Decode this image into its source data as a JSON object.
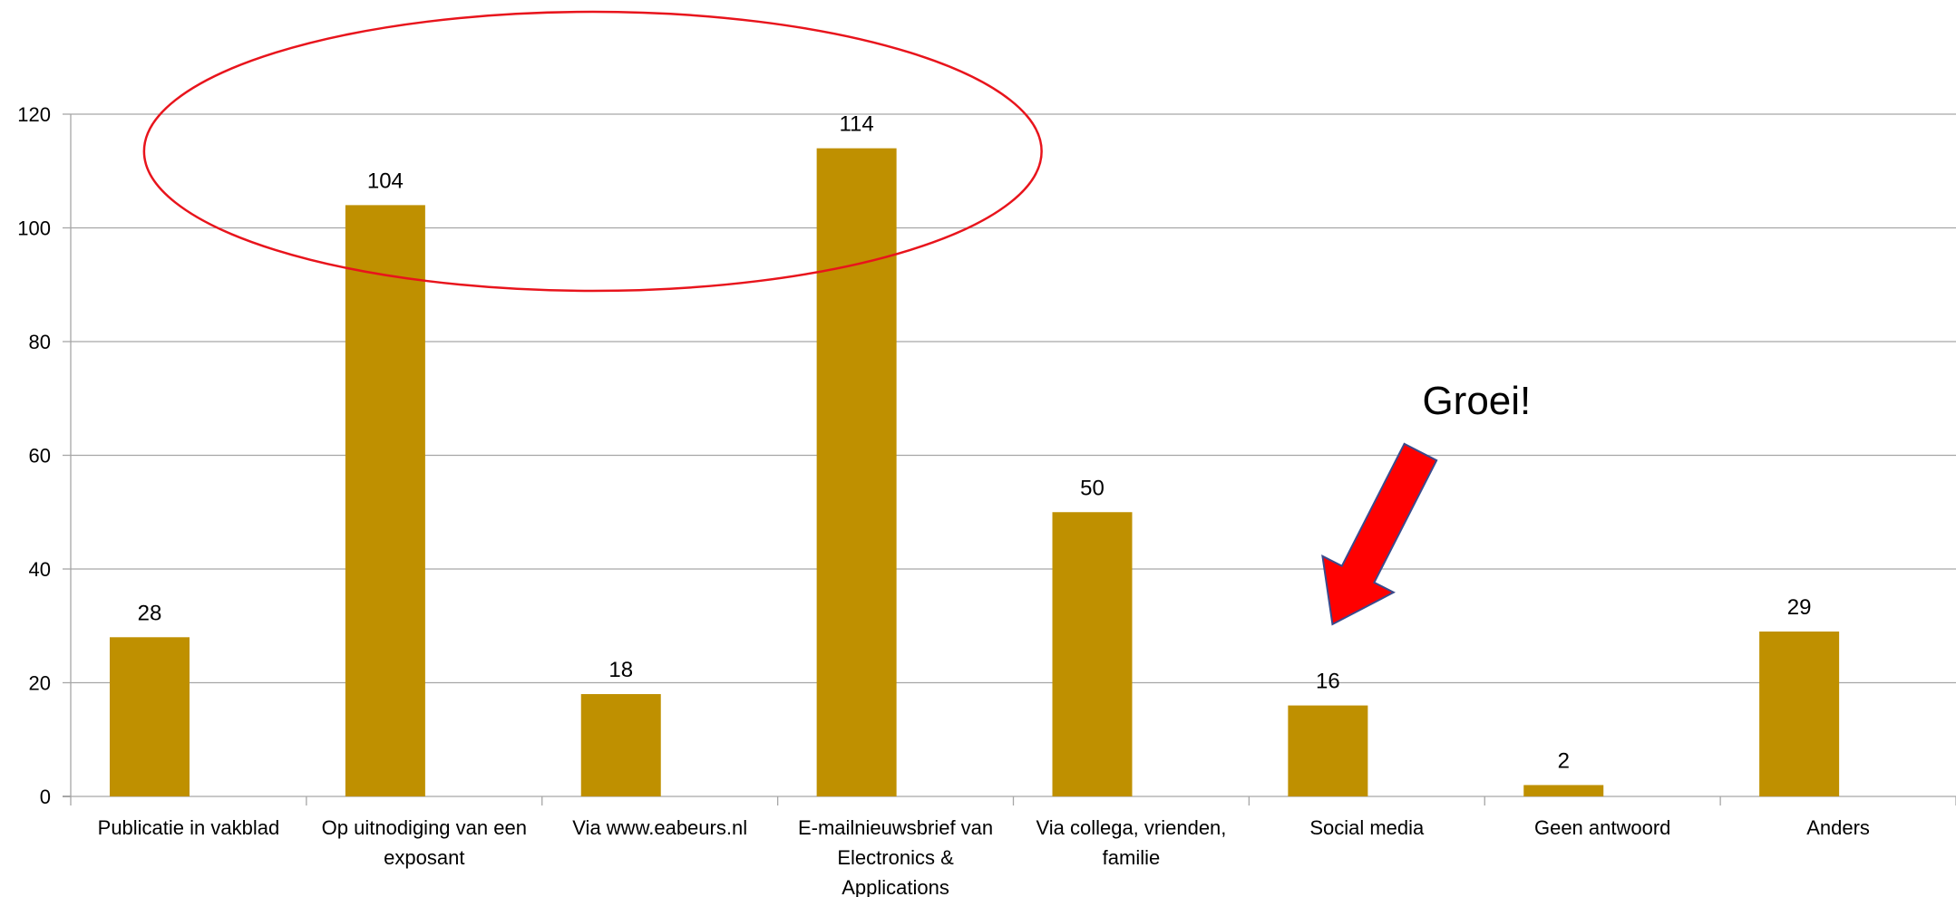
{
  "chart_data": {
    "type": "bar",
    "categories": [
      [
        "Publicatie in vakblad"
      ],
      [
        "Op uitnodiging van een",
        "exposant"
      ],
      [
        "Via www.eabeurs.nl"
      ],
      [
        "E-mailnieuwsbrief van",
        "Electronics &",
        "Applications"
      ],
      [
        "Via collega, vrienden,",
        "familie"
      ],
      [
        "Social media"
      ],
      [
        "Geen antwoord"
      ],
      [
        "Anders"
      ]
    ],
    "values": [
      28,
      104,
      18,
      114,
      50,
      16,
      2,
      29
    ],
    "data_labels": [
      "28",
      "104",
      "18",
      "114",
      "50",
      "16",
      "2",
      "29"
    ],
    "ylim": [
      0,
      120
    ],
    "yticks": [
      "0",
      "20",
      "40",
      "60",
      "80",
      "100",
      "120"
    ],
    "grid": true,
    "legend": "none",
    "title": "",
    "xlabel": "",
    "ylabel": "",
    "colors": {
      "bar": "#BF9000",
      "grid": "#A6A6A6",
      "highlight_ellipse": "#E8141C",
      "arrow_fill": "#FF0000",
      "arrow_stroke": "#3A4A8C"
    },
    "annotations": {
      "highlight_ellipse": {
        "around_categories": [
          1,
          3
        ]
      },
      "arrow": {
        "text": "Groei!",
        "points_to_category": 5
      }
    }
  }
}
